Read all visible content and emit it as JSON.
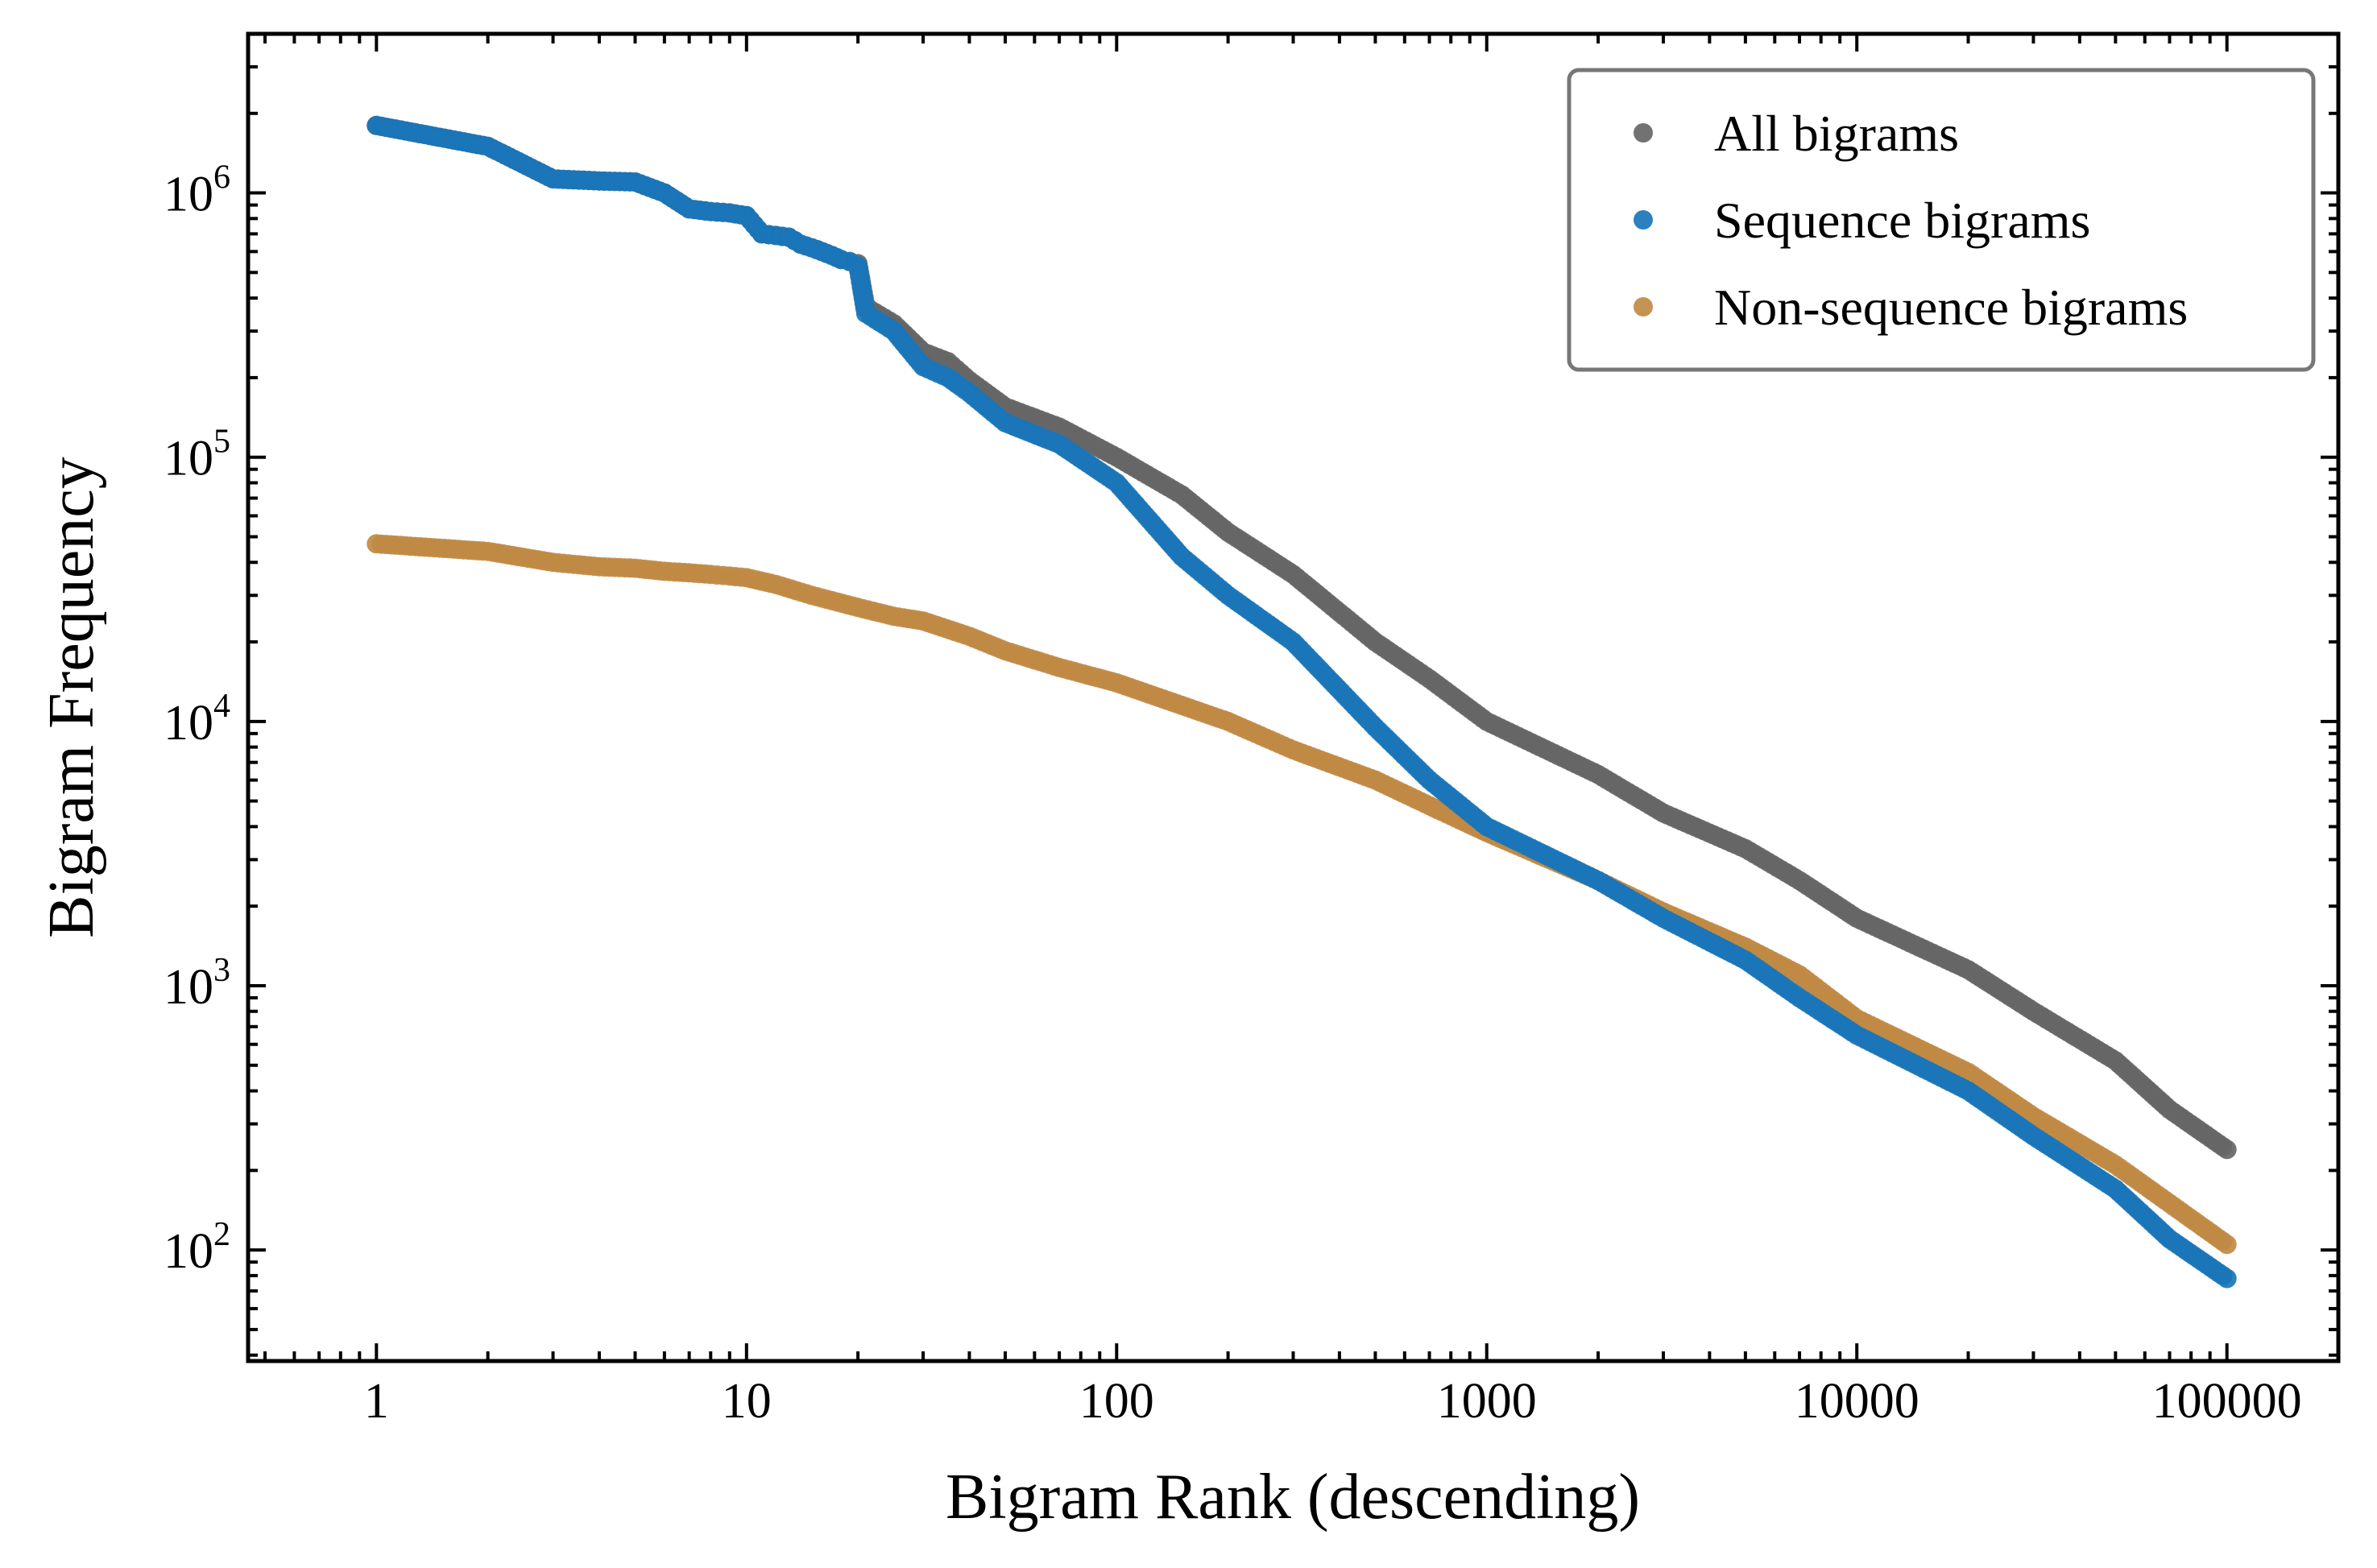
{
  "chart_data": {
    "type": "scatter",
    "title": "",
    "xlabel": "Bigram Rank (descending)",
    "ylabel": "Bigram Frequency",
    "x_scale": "log",
    "y_scale": "log",
    "xlim": [
      0.45,
      200000
    ],
    "ylim": [
      38,
      4000000
    ],
    "x_ticks": [
      {
        "value": 1,
        "label": "1"
      },
      {
        "value": 10,
        "label": "10"
      },
      {
        "value": 100,
        "label": "100"
      },
      {
        "value": 1000,
        "label": "1000"
      },
      {
        "value": 10000,
        "label": "10000"
      },
      {
        "value": 100000,
        "label": "100000"
      }
    ],
    "y_ticks": [
      {
        "value": 100,
        "base": "10",
        "exp": "2"
      },
      {
        "value": 1000,
        "base": "10",
        "exp": "3"
      },
      {
        "value": 10000,
        "base": "10",
        "exp": "4"
      },
      {
        "value": 100000,
        "base": "10",
        "exp": "5"
      },
      {
        "value": 1000000,
        "base": "10",
        "exp": "6"
      }
    ],
    "grid": false,
    "legend_position": "top-right",
    "series": [
      {
        "name": "All bigrams",
        "color": "#666666",
        "points": [
          [
            1,
            1800000
          ],
          [
            2,
            1500000
          ],
          [
            3,
            1130000
          ],
          [
            4,
            1110000
          ],
          [
            5,
            1100000
          ],
          [
            6,
            1000000
          ],
          [
            7,
            870000
          ],
          [
            8,
            850000
          ],
          [
            9,
            840000
          ],
          [
            10,
            820000
          ],
          [
            11,
            700000
          ],
          [
            12,
            690000
          ],
          [
            13,
            680000
          ],
          [
            14,
            640000
          ],
          [
            15,
            620000
          ],
          [
            16,
            600000
          ],
          [
            17,
            580000
          ],
          [
            18,
            560000
          ],
          [
            19,
            550000
          ],
          [
            20,
            540000
          ],
          [
            21,
            370000
          ],
          [
            25,
            320000
          ],
          [
            30,
            250000
          ],
          [
            35,
            230000
          ],
          [
            40,
            195000
          ],
          [
            50,
            155000
          ],
          [
            70,
            130000
          ],
          [
            100,
            100000
          ],
          [
            150,
            72000
          ],
          [
            200,
            52000
          ],
          [
            300,
            36000
          ],
          [
            500,
            20000
          ],
          [
            700,
            14500
          ],
          [
            1000,
            10000
          ],
          [
            2000,
            6300
          ],
          [
            3000,
            4500
          ],
          [
            5000,
            3300
          ],
          [
            7000,
            2500
          ],
          [
            10000,
            1800
          ],
          [
            20000,
            1150
          ],
          [
            30000,
            800
          ],
          [
            50000,
            520
          ],
          [
            70000,
            340
          ],
          [
            100000,
            240
          ]
        ]
      },
      {
        "name": "Sequence bigrams",
        "color": "#1a75b8",
        "points": [
          [
            1,
            1800000
          ],
          [
            2,
            1500000
          ],
          [
            3,
            1130000
          ],
          [
            4,
            1110000
          ],
          [
            5,
            1100000
          ],
          [
            6,
            1000000
          ],
          [
            7,
            870000
          ],
          [
            8,
            850000
          ],
          [
            9,
            840000
          ],
          [
            10,
            820000
          ],
          [
            11,
            700000
          ],
          [
            12,
            690000
          ],
          [
            13,
            680000
          ],
          [
            14,
            640000
          ],
          [
            15,
            620000
          ],
          [
            16,
            600000
          ],
          [
            17,
            580000
          ],
          [
            18,
            560000
          ],
          [
            19,
            550000
          ],
          [
            20,
            530000
          ],
          [
            21,
            350000
          ],
          [
            25,
            300000
          ],
          [
            30,
            220000
          ],
          [
            35,
            200000
          ],
          [
            40,
            175000
          ],
          [
            50,
            135000
          ],
          [
            70,
            112000
          ],
          [
            100,
            80000
          ],
          [
            150,
            42000
          ],
          [
            200,
            30000
          ],
          [
            300,
            20000
          ],
          [
            500,
            9500
          ],
          [
            700,
            6000
          ],
          [
            1000,
            4000
          ],
          [
            2000,
            2500
          ],
          [
            3000,
            1800
          ],
          [
            5000,
            1250
          ],
          [
            7000,
            900
          ],
          [
            10000,
            650
          ],
          [
            20000,
            400
          ],
          [
            30000,
            270
          ],
          [
            50000,
            170
          ],
          [
            70000,
            110
          ],
          [
            100000,
            78
          ]
        ]
      },
      {
        "name": "Non-sequence bigrams",
        "color": "#c08a45",
        "points": [
          [
            1,
            47000
          ],
          [
            2,
            44000
          ],
          [
            3,
            40000
          ],
          [
            4,
            38500
          ],
          [
            5,
            38000
          ],
          [
            6,
            37000
          ],
          [
            7,
            36500
          ],
          [
            8,
            36000
          ],
          [
            9,
            35500
          ],
          [
            10,
            35000
          ],
          [
            12,
            33000
          ],
          [
            15,
            30000
          ],
          [
            20,
            27000
          ],
          [
            25,
            25000
          ],
          [
            30,
            24000
          ],
          [
            40,
            21000
          ],
          [
            50,
            18500
          ],
          [
            70,
            16000
          ],
          [
            100,
            14000
          ],
          [
            150,
            11500
          ],
          [
            200,
            10000
          ],
          [
            300,
            7800
          ],
          [
            500,
            6000
          ],
          [
            700,
            4800
          ],
          [
            1000,
            3800
          ],
          [
            2000,
            2500
          ],
          [
            3000,
            1900
          ],
          [
            5000,
            1400
          ],
          [
            7000,
            1100
          ],
          [
            10000,
            750
          ],
          [
            20000,
            470
          ],
          [
            30000,
            320
          ],
          [
            50000,
            210
          ],
          [
            70000,
            150
          ],
          [
            100000,
            105
          ]
        ]
      }
    ]
  }
}
